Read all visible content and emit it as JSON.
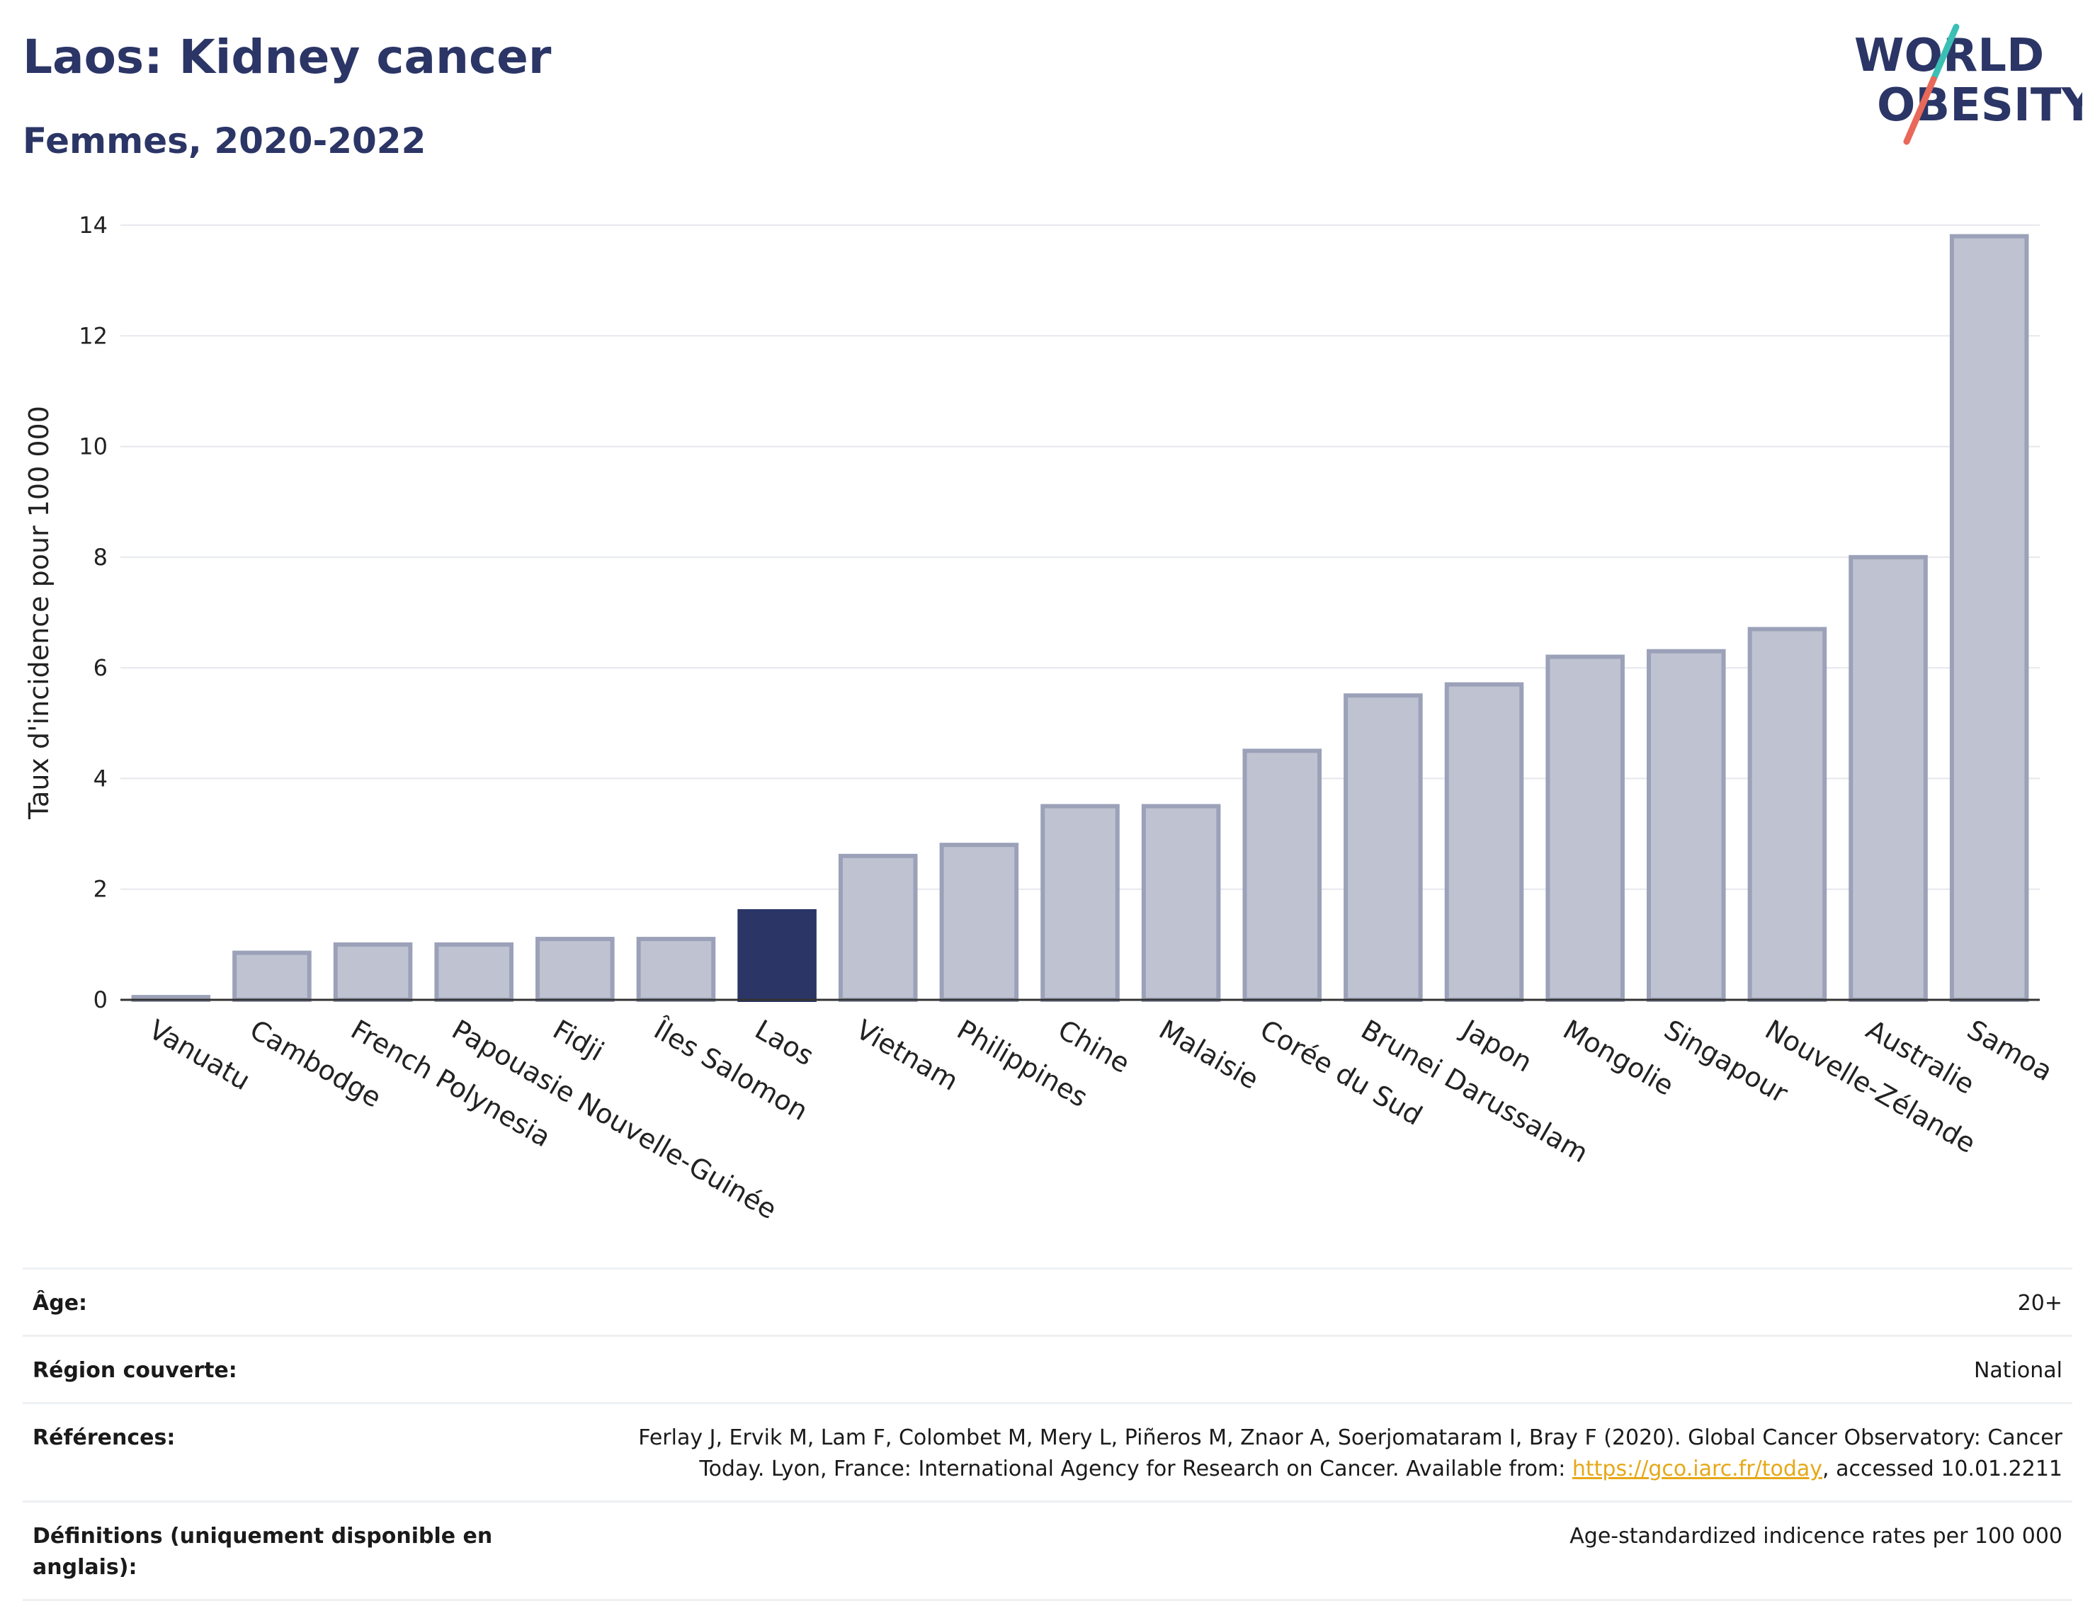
{
  "header": {
    "title": "Laos: Kidney cancer",
    "subtitle": "Femmes, 2020-2022"
  },
  "logo": {
    "line1": "WORLD",
    "line2": "OBESITY",
    "colors": {
      "text": "#2b3566",
      "slash_red": "#e8685a",
      "slash_teal": "#3bbfb5"
    }
  },
  "chart_data": {
    "type": "bar",
    "ylabel": "Taux d'incidence pour 100 000",
    "xlabel": "",
    "ylim": [
      0,
      14
    ],
    "yticks": [
      0,
      2,
      4,
      6,
      8,
      10,
      12,
      14
    ],
    "grid": true,
    "highlight": "Laos",
    "colors": {
      "bar": "#bfc3d1",
      "bar_stroke": "#9ba1b8",
      "highlight": "#2b3566",
      "grid": "#e6e8ee"
    },
    "categories": [
      "Vanuatu",
      "Cambodge",
      "French Polynesia",
      "Papouasie Nouvelle-Guinée",
      "Fidji",
      "Îles Salomon",
      "Laos",
      "Vietnam",
      "Philippines",
      "Chine",
      "Malaisie",
      "Corée du Sud",
      "Brunei Darussalam",
      "Japon",
      "Mongolie",
      "Singapour",
      "Nouvelle-Zélande",
      "Australie",
      "Samoa"
    ],
    "values": [
      0.05,
      0.85,
      1.0,
      1.0,
      1.1,
      1.1,
      1.6,
      2.6,
      2.8,
      3.5,
      3.5,
      4.5,
      5.5,
      5.7,
      6.2,
      6.3,
      6.7,
      8.0,
      13.8
    ]
  },
  "meta": {
    "age_label": "Âge:",
    "age_value": "20+",
    "region_label": "Région couverte:",
    "region_value": "National",
    "refs_label": "Références:",
    "refs_text_1": "Ferlay J, Ervik M, Lam F, Colombet M, Mery L, Piñeros M, Znaor A, Soerjomataram I, Bray F (2020). Global Cancer Observatory: Cancer Today. Lyon, France: International Agency for Research on Cancer. Available from: ",
    "refs_link": "https://gco.iarc.fr/today",
    "refs_text_2": ", accessed 10.01.2211",
    "defs_label": "Définitions (uniquement disponible en anglais):",
    "defs_value": "Age-standardized indicence rates per 100 000"
  }
}
